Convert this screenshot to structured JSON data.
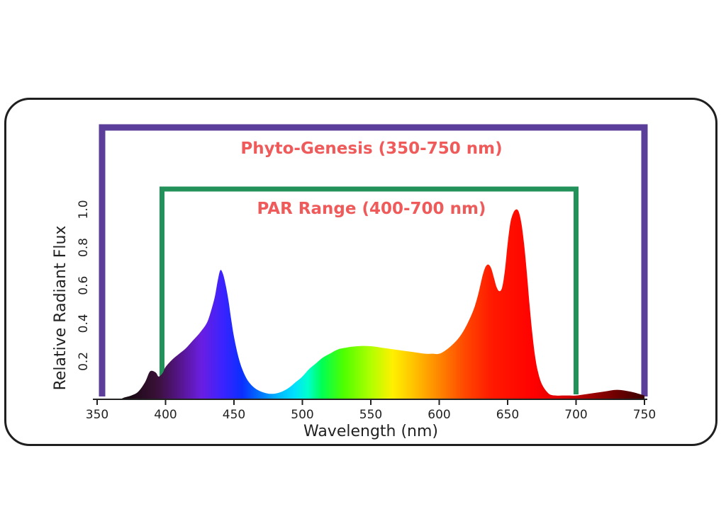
{
  "chart_data": {
    "type": "area",
    "title": "",
    "xlabel": "Wavelength (nm)",
    "ylabel": "Relative Radiant Flux",
    "xlim": [
      350,
      750
    ],
    "ylim": [
      0,
      1.0
    ],
    "x_ticks": [
      350,
      400,
      450,
      500,
      550,
      600,
      650,
      700,
      750
    ],
    "x_tick_labels": [
      "350",
      "400",
      "450",
      "500",
      "550",
      "600",
      "650",
      "700",
      "750"
    ],
    "y_ticks": [
      0.2,
      0.4,
      0.6,
      0.8,
      1.0
    ],
    "y_tick_labels": [
      "0.2",
      "0.4",
      "0.6",
      "0.8",
      "1.0"
    ],
    "grid": false,
    "fill": "visible-spectrum gradient",
    "ranges": [
      {
        "label": "Phyto-Genesis (350-750 nm)",
        "start": 350,
        "end": 750,
        "color": "#5b3e9a"
      },
      {
        "label": "PAR Range (400-700 nm)",
        "start": 400,
        "end": 700,
        "color": "#23915a"
      }
    ],
    "label_color": "#ef5b5b",
    "series": [
      {
        "x": [
          350,
          365,
          370,
          375,
          380,
          385,
          388,
          390,
          393,
          395,
          398,
          400,
          405,
          410,
          415,
          420,
          425,
          430,
          433,
          436,
          438,
          440,
          442,
          444,
          446,
          448,
          450,
          453,
          456,
          460,
          465,
          470,
          475,
          480,
          485,
          490,
          495,
          500,
          505,
          510,
          515,
          520,
          525,
          530,
          540,
          550,
          560,
          570,
          580,
          590,
          595,
          600,
          605,
          610,
          615,
          620,
          625,
          628,
          630,
          632,
          634,
          636,
          638,
          640,
          642,
          644,
          646,
          648,
          650,
          652,
          654,
          656,
          658,
          660,
          662,
          664,
          666,
          668,
          670,
          672,
          675,
          680,
          685,
          690,
          695,
          700,
          710,
          720,
          730,
          740,
          750
        ],
        "y": [
          0.0,
          0.0,
          0.01,
          0.02,
          0.04,
          0.09,
          0.14,
          0.15,
          0.14,
          0.12,
          0.14,
          0.17,
          0.21,
          0.24,
          0.27,
          0.31,
          0.35,
          0.4,
          0.46,
          0.54,
          0.62,
          0.68,
          0.66,
          0.6,
          0.52,
          0.42,
          0.33,
          0.23,
          0.16,
          0.1,
          0.06,
          0.04,
          0.03,
          0.03,
          0.04,
          0.06,
          0.09,
          0.12,
          0.16,
          0.19,
          0.22,
          0.24,
          0.26,
          0.27,
          0.28,
          0.28,
          0.27,
          0.26,
          0.25,
          0.24,
          0.24,
          0.24,
          0.26,
          0.29,
          0.33,
          0.39,
          0.47,
          0.54,
          0.6,
          0.66,
          0.7,
          0.71,
          0.69,
          0.64,
          0.59,
          0.57,
          0.59,
          0.68,
          0.82,
          0.93,
          0.98,
          1.0,
          0.99,
          0.93,
          0.82,
          0.67,
          0.5,
          0.35,
          0.23,
          0.15,
          0.08,
          0.03,
          0.02,
          0.02,
          0.02,
          0.02,
          0.03,
          0.04,
          0.05,
          0.04,
          0.02
        ]
      }
    ]
  }
}
